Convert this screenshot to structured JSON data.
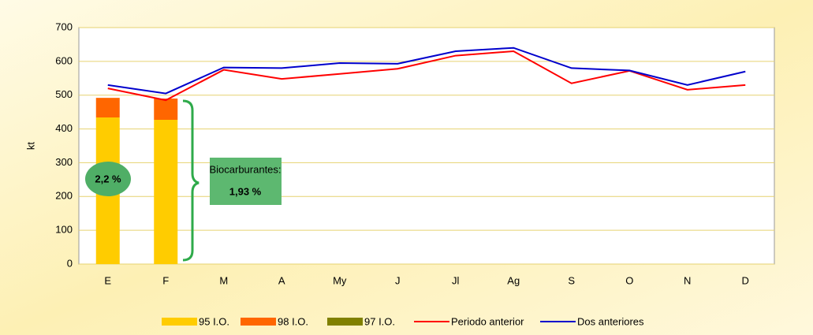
{
  "chart_data": {
    "type": "bar_line",
    "ylabel": "kt",
    "categories": [
      "E",
      "F",
      "M",
      "A",
      "My",
      "J",
      "Jl",
      "Ag",
      "S",
      "O",
      "N",
      "D"
    ],
    "series": [
      {
        "name": "95 I.O.",
        "color": "#ffcc00",
        "kind": "bar",
        "values": [
          434,
          427,
          null,
          null,
          null,
          null,
          null,
          null,
          null,
          null,
          null,
          null
        ]
      },
      {
        "name": "98 I.O.",
        "color": "#ff6600",
        "kind": "bar",
        "values": [
          58,
          63,
          null,
          null,
          null,
          null,
          null,
          null,
          null,
          null,
          null,
          null
        ]
      },
      {
        "name": "97 I.O.",
        "color": "#808000",
        "kind": "bar",
        "values": [
          0,
          0,
          null,
          null,
          null,
          null,
          null,
          null,
          null,
          null,
          null,
          null
        ]
      },
      {
        "name": "Periodo anterior",
        "color": "#ff0000",
        "kind": "line",
        "values": [
          520,
          485,
          575,
          548,
          563,
          578,
          617,
          630,
          535,
          572,
          516,
          530
        ]
      },
      {
        "name": "Dos anteriores",
        "color": "#0000cc",
        "kind": "line",
        "values": [
          530,
          505,
          582,
          580,
          595,
          593,
          630,
          640,
          580,
          573,
          530,
          570
        ]
      }
    ],
    "annotations": [
      "2,2 %",
      "Biocarburantes:",
      "1,93 %"
    ],
    "ylim": [
      0,
      700
    ],
    "yticks": [
      0,
      100,
      200,
      300,
      400,
      500,
      600,
      700
    ],
    "grid": true
  }
}
